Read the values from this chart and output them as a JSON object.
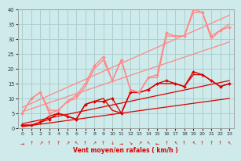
{
  "xlabel": "Vent moyen/en rafales ( km/h )",
  "bg_color": "#ceeaea",
  "grid_color": "#aacfcf",
  "xlim": [
    -0.5,
    23.5
  ],
  "ylim": [
    0,
    40
  ],
  "yticks": [
    0,
    5,
    10,
    15,
    20,
    25,
    30,
    35,
    40
  ],
  "xticks": [
    0,
    1,
    2,
    3,
    4,
    5,
    6,
    7,
    8,
    9,
    10,
    11,
    12,
    13,
    14,
    15,
    16,
    17,
    18,
    19,
    20,
    21,
    22,
    23
  ],
  "lines": [
    {
      "note": "dark red jagged line with markers - lower",
      "x": [
        0,
        1,
        2,
        3,
        4,
        5,
        6,
        7,
        8,
        9,
        10,
        11,
        12,
        13,
        14,
        15,
        16,
        17,
        18,
        19,
        20,
        21,
        22,
        23
      ],
      "y": [
        1,
        1,
        2,
        3,
        5,
        4,
        3,
        8,
        9,
        9,
        10,
        5,
        12,
        12,
        13,
        15,
        16,
        15,
        14,
        19,
        18,
        16,
        14,
        15
      ],
      "color": "#dd0000",
      "lw": 1.0,
      "marker": "D",
      "ms": 2.0,
      "zorder": 5
    },
    {
      "note": "dark red line no marker - slightly different",
      "x": [
        0,
        1,
        2,
        3,
        4,
        5,
        6,
        7,
        8,
        9,
        10,
        11,
        12,
        13,
        14,
        15,
        16,
        17,
        18,
        19,
        20,
        21,
        22,
        23
      ],
      "y": [
        1,
        1,
        2,
        4,
        5,
        4,
        3,
        8,
        9,
        10,
        6,
        5,
        12,
        12,
        13,
        15,
        15,
        15,
        14,
        18,
        18,
        16,
        14,
        15
      ],
      "color": "#dd0000",
      "lw": 1.0,
      "marker": null,
      "ms": 0,
      "zorder": 4
    },
    {
      "note": "light pink jagged line with markers - upper volatile",
      "x": [
        0,
        1,
        2,
        3,
        4,
        5,
        6,
        7,
        8,
        9,
        10,
        11,
        12,
        13,
        14,
        15,
        16,
        17,
        18,
        19,
        20,
        21,
        22,
        23
      ],
      "y": [
        5,
        10,
        12,
        5,
        6,
        9,
        11,
        15,
        21,
        24,
        16,
        23,
        13,
        12,
        17,
        18,
        32,
        31,
        31,
        40,
        39,
        31,
        33,
        34
      ],
      "color": "#ff8888",
      "lw": 1.0,
      "marker": "D",
      "ms": 2.0,
      "zorder": 5
    },
    {
      "note": "light pink line no marker - slightly different",
      "x": [
        0,
        1,
        2,
        3,
        4,
        5,
        6,
        7,
        8,
        9,
        10,
        11,
        12,
        13,
        14,
        15,
        16,
        17,
        18,
        19,
        20,
        21,
        22,
        23
      ],
      "y": [
        5,
        10,
        12,
        6,
        6,
        9,
        10,
        14,
        20,
        23,
        16,
        23,
        13,
        12,
        17,
        17,
        31,
        31,
        31,
        39,
        39,
        30,
        33,
        35
      ],
      "color": "#ff8888",
      "lw": 1.0,
      "marker": null,
      "ms": 0,
      "zorder": 4
    },
    {
      "note": "dark red straight diagonal - bottom linear trend",
      "x": [
        0,
        23
      ],
      "y": [
        0.5,
        10
      ],
      "color": "#dd0000",
      "lw": 0.9,
      "marker": null,
      "ms": 0,
      "zorder": 3
    },
    {
      "note": "dark red straight diagonal - mid linear trend",
      "x": [
        0,
        23
      ],
      "y": [
        1.5,
        16
      ],
      "color": "#dd0000",
      "lw": 0.9,
      "marker": null,
      "ms": 0,
      "zorder": 3
    },
    {
      "note": "light pink straight diagonal - lower",
      "x": [
        0,
        23
      ],
      "y": [
        5.5,
        29
      ],
      "color": "#ff8888",
      "lw": 0.9,
      "marker": null,
      "ms": 0,
      "zorder": 3
    },
    {
      "note": "light pink straight diagonal - upper",
      "x": [
        0,
        23
      ],
      "y": [
        7,
        38
      ],
      "color": "#ff8888",
      "lw": 0.9,
      "marker": null,
      "ms": 0,
      "zorder": 3
    }
  ],
  "wind_symbols": {
    "x": [
      0,
      1,
      2,
      3,
      4,
      5,
      6,
      7,
      8,
      9,
      10,
      11,
      12,
      13,
      14,
      15,
      16,
      17,
      18,
      19,
      20,
      21,
      22,
      23
    ],
    "symbols": [
      "→",
      "↑",
      "↗",
      "↑",
      "↑",
      "↗",
      "↖",
      "↑",
      "↗",
      "↑",
      "↓",
      "→",
      "↘",
      "↗",
      "↖",
      "←",
      "↑",
      "↖",
      "↑",
      "↖",
      "↑",
      "↑",
      "↑",
      "↖"
    ],
    "color": "#dd0000",
    "fontsize": 4.5
  }
}
